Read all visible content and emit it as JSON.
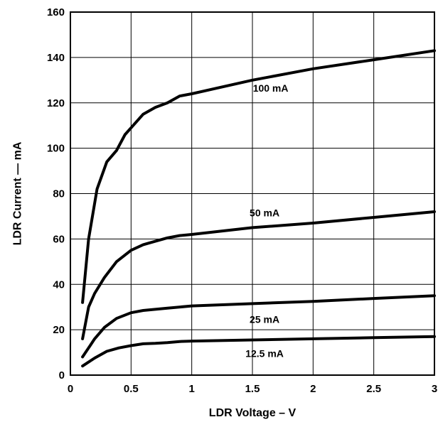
{
  "chart_data": {
    "type": "line",
    "xlabel": "LDR Voltage – V",
    "ylabel": "LDR Current — mA",
    "xlim": [
      0,
      3
    ],
    "ylim": [
      0,
      160
    ],
    "xticks": [
      0,
      0.5,
      1,
      1.5,
      2,
      2.5,
      3
    ],
    "xtick_labels": [
      "0",
      "0.5",
      "1",
      "1.5",
      "2",
      "2.5",
      "3"
    ],
    "yticks": [
      0,
      20,
      40,
      60,
      80,
      100,
      120,
      140,
      160
    ],
    "ytick_labels": [
      "0",
      "20",
      "40",
      "60",
      "80",
      "100",
      "120",
      "140",
      "160"
    ],
    "grid": true,
    "series": [
      {
        "name": "100 mA",
        "label_at": [
          1.65,
          125
        ],
        "points": [
          [
            0.1,
            32
          ],
          [
            0.15,
            60
          ],
          [
            0.22,
            82
          ],
          [
            0.3,
            94
          ],
          [
            0.38,
            99
          ],
          [
            0.45,
            106
          ],
          [
            0.5,
            109
          ],
          [
            0.6,
            115
          ],
          [
            0.7,
            118
          ],
          [
            0.8,
            120
          ],
          [
            0.9,
            123
          ],
          [
            1,
            124
          ],
          [
            1.5,
            130
          ],
          [
            2,
            135
          ],
          [
            2.5,
            139
          ],
          [
            3,
            143
          ]
        ]
      },
      {
        "name": "50 mA",
        "label_at": [
          1.6,
          70
        ],
        "points": [
          [
            0.1,
            16
          ],
          [
            0.15,
            30
          ],
          [
            0.2,
            36
          ],
          [
            0.28,
            43
          ],
          [
            0.38,
            50
          ],
          [
            0.5,
            55
          ],
          [
            0.6,
            57.5
          ],
          [
            0.7,
            59
          ],
          [
            0.8,
            60.5
          ],
          [
            0.9,
            61.5
          ],
          [
            1,
            62
          ],
          [
            1.5,
            65
          ],
          [
            2,
            67
          ],
          [
            2.5,
            69.5
          ],
          [
            3,
            72
          ]
        ]
      },
      {
        "name": "25 mA",
        "label_at": [
          1.6,
          23
        ],
        "points": [
          [
            0.1,
            8
          ],
          [
            0.15,
            12
          ],
          [
            0.2,
            16
          ],
          [
            0.28,
            21
          ],
          [
            0.38,
            25
          ],
          [
            0.5,
            27.5
          ],
          [
            0.6,
            28.5
          ],
          [
            0.8,
            29.5
          ],
          [
            1,
            30.5
          ],
          [
            1.5,
            31.5
          ],
          [
            2,
            32.5
          ],
          [
            2.5,
            33.8
          ],
          [
            3,
            35
          ]
        ]
      },
      {
        "name": "12.5 mA",
        "label_at": [
          1.6,
          8
        ],
        "points": [
          [
            0.1,
            4
          ],
          [
            0.2,
            7.5
          ],
          [
            0.3,
            10.5
          ],
          [
            0.4,
            12
          ],
          [
            0.5,
            13
          ],
          [
            0.6,
            13.8
          ],
          [
            0.7,
            14
          ],
          [
            0.8,
            14.3
          ],
          [
            0.9,
            14.8
          ],
          [
            1,
            15
          ],
          [
            1.5,
            15.5
          ],
          [
            2,
            16
          ],
          [
            2.5,
            16.5
          ],
          [
            3,
            17
          ]
        ]
      }
    ]
  }
}
